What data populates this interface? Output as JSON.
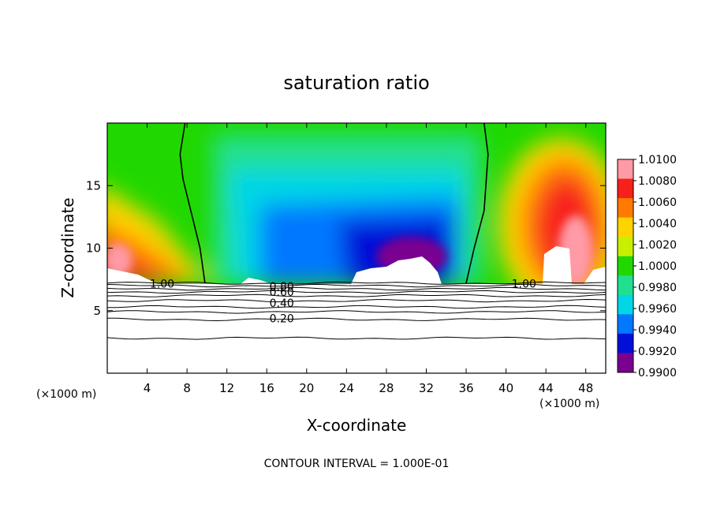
{
  "chart_data": {
    "type": "heatmap",
    "title": "saturation ratio",
    "xlabel": "X-coordinate",
    "ylabel": "Z-coordinate",
    "x_unit_left": "(×1000 m)",
    "x_unit_right": "(×1000 m)",
    "xlim": [
      0,
      50
    ],
    "ylim": [
      0,
      20
    ],
    "x_ticks": [
      "4",
      "8",
      "12",
      "16",
      "20",
      "24",
      "28",
      "32",
      "36",
      "40",
      "44",
      "48"
    ],
    "x_tick_values": [
      4,
      8,
      12,
      16,
      20,
      24,
      28,
      32,
      36,
      40,
      44,
      48
    ],
    "y_ticks": [
      "5",
      "10",
      "15"
    ],
    "y_tick_values": [
      5,
      10,
      15
    ],
    "footer": "CONTOUR INTERVAL = 1.000E-01",
    "colorbar": {
      "min": 0.99,
      "max": 1.01,
      "labels": [
        "1.0100",
        "1.0080",
        "1.0060",
        "1.0040",
        "1.0020",
        "1.0000",
        "0.9980",
        "0.9960",
        "0.9940",
        "0.9920",
        "0.9900"
      ],
      "values": [
        1.01,
        1.008,
        1.006,
        1.004,
        1.002,
        1.0,
        0.998,
        0.996,
        0.994,
        0.992,
        0.99
      ],
      "colors": [
        "#ff9aa6",
        "#f7201a",
        "#ff7a00",
        "#ffd400",
        "#c7f000",
        "#20d800",
        "#20e090",
        "#00d6e6",
        "#0078ff",
        "#0010d8",
        "#7a0090"
      ]
    },
    "contour_labels": [
      {
        "text": "1.00",
        "x": 5.5,
        "z": 7.15
      },
      {
        "text": "0.80",
        "x": 17.5,
        "z": 6.95
      },
      {
        "text": "0.60",
        "x": 17.5,
        "z": 6.5
      },
      {
        "text": "0.40",
        "x": 17.5,
        "z": 5.6
      },
      {
        "text": "0.20",
        "x": 17.5,
        "z": 4.4
      },
      {
        "text": "1.00",
        "x": 41.8,
        "z": 7.15
      }
    ],
    "contours_below_cloud_z": [
      7.2,
      7.0,
      6.75,
      6.5,
      6.2,
      5.8,
      5.3,
      4.9,
      4.3,
      2.8
    ],
    "saturation_1_boundary": [
      {
        "name": "left",
        "points": [
          [
            7.8,
            20
          ],
          [
            7.3,
            17.5
          ],
          [
            7.6,
            15.5
          ],
          [
            9.3,
            10
          ],
          [
            9.8,
            7.2
          ]
        ]
      },
      {
        "name": "right",
        "points": [
          [
            37.8,
            20
          ],
          [
            38.2,
            17.5
          ],
          [
            37.8,
            13
          ],
          [
            36.8,
            10
          ],
          [
            36.0,
            7.2
          ]
        ]
      }
    ]
  }
}
